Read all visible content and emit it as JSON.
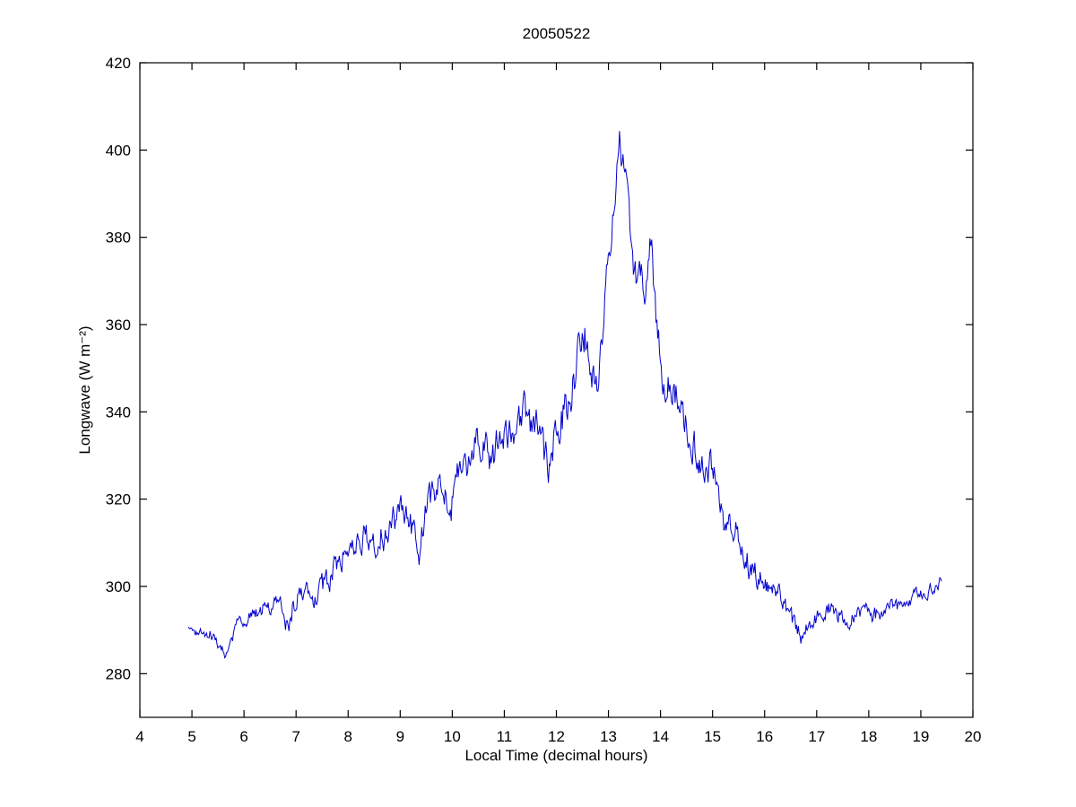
{
  "chart_data": {
    "type": "line",
    "title": "20050522",
    "xlabel": "Local Time (decimal hours)",
    "ylabel": "Longwave (W m⁻²)",
    "xlim": [
      4,
      20
    ],
    "ylim": [
      270,
      420
    ],
    "xticks": [
      4,
      5,
      6,
      7,
      8,
      9,
      10,
      11,
      12,
      13,
      14,
      15,
      16,
      17,
      18,
      19,
      20
    ],
    "yticks": [
      280,
      300,
      320,
      340,
      360,
      380,
      400,
      420
    ],
    "grid": false,
    "line_color": "#0000CC",
    "line_width": 1,
    "marker": "none",
    "series": [
      {
        "name": "longwave",
        "sample_interval_hours": 0.0167,
        "x": [
          4.93,
          5.05,
          5.15,
          5.25,
          5.35,
          5.45,
          5.55,
          5.65,
          5.75,
          5.85,
          5.95,
          6.05,
          6.15,
          6.25,
          6.35,
          6.45,
          6.55,
          6.65,
          6.75,
          6.85,
          6.95,
          7.05,
          7.15,
          7.25,
          7.35,
          7.45,
          7.55,
          7.65,
          7.75,
          7.85,
          7.95,
          8.05,
          8.15,
          8.25,
          8.35,
          8.45,
          8.55,
          8.65,
          8.75,
          8.85,
          8.95,
          9.05,
          9.15,
          9.25,
          9.35,
          9.45,
          9.55,
          9.65,
          9.75,
          9.85,
          9.95,
          10.05,
          10.15,
          10.25,
          10.35,
          10.45,
          10.55,
          10.65,
          10.75,
          10.85,
          10.95,
          11.05,
          11.15,
          11.25,
          11.35,
          11.45,
          11.55,
          11.65,
          11.75,
          11.85,
          11.95,
          12.05,
          12.15,
          12.25,
          12.35,
          12.45,
          12.55,
          12.65,
          12.75,
          12.85,
          12.95,
          13.05,
          13.15,
          13.22,
          13.3,
          13.4,
          13.5,
          13.6,
          13.7,
          13.8,
          13.9,
          14.0,
          14.1,
          14.2,
          14.3,
          14.4,
          14.5,
          14.6,
          14.7,
          14.8,
          14.9,
          15.0,
          15.1,
          15.2,
          15.3,
          15.4,
          15.5,
          15.6,
          15.7,
          15.8,
          15.9,
          16.0,
          16.1,
          16.2,
          16.3,
          16.4,
          16.5,
          16.6,
          16.7,
          16.8,
          16.9,
          17.0,
          17.1,
          17.2,
          17.3,
          17.4,
          17.5,
          17.6,
          17.7,
          17.8,
          17.9,
          18.0,
          18.1,
          18.2,
          18.3,
          18.4,
          18.5,
          18.6,
          18.7,
          18.8,
          18.9,
          19.0,
          19.1,
          19.2,
          19.3,
          19.4
        ],
        "y": [
          291,
          289.5,
          290,
          289,
          289.5,
          287.5,
          286.5,
          284.5,
          287,
          291,
          292.5,
          292.5,
          293.5,
          294,
          294.5,
          296,
          295.5,
          297,
          295,
          289.5,
          296,
          298.5,
          299.5,
          297,
          296.5,
          298,
          300.5,
          302,
          304.5,
          306.5,
          308,
          309.5,
          310.5,
          311.5,
          312,
          309,
          308,
          311.5,
          313,
          314,
          315.5,
          316.5,
          318,
          313,
          307.5,
          315,
          320,
          321.5,
          322.5,
          320,
          317.5,
          322,
          326,
          327.5,
          330,
          332,
          333.5,
          331,
          330,
          332,
          333.5,
          334,
          335.5,
          337,
          340,
          339,
          337.5,
          338.5,
          331,
          326,
          333,
          336,
          339.5,
          344,
          349,
          353,
          356,
          350,
          342,
          355,
          368,
          381,
          393,
          401,
          396,
          386,
          371,
          372,
          367,
          379,
          366,
          350,
          346.5,
          345.5,
          344,
          340.5,
          337.5,
          334,
          331.5,
          327,
          324.5,
          329,
          319,
          315.5,
          313.5,
          312.5,
          312,
          308,
          305,
          303.5,
          302,
          300.5,
          300,
          300.5,
          299.5,
          295,
          292.5,
          289.5,
          288.5,
          290,
          291,
          292.5,
          293.5,
          294.5,
          295.5,
          294,
          293,
          292,
          292.5,
          294,
          295,
          293.5,
          293,
          294,
          294.5,
          295.5,
          296.5,
          295,
          295.5,
          297,
          298,
          298.5,
          299,
          299.5,
          300,
          301
        ],
        "noise_x": [
          4.9,
          6,
          7,
          8,
          9,
          10,
          11,
          12,
          12.7,
          13.2,
          13.8,
          14.5,
          15,
          16,
          16.8,
          17.5,
          18.5,
          19.4
        ],
        "noise_amp": [
          0.8,
          1.0,
          1.8,
          2.2,
          2.8,
          3.0,
          3.2,
          3.3,
          3.8,
          3.0,
          3.5,
          2.8,
          2.8,
          2.0,
          1.5,
          1.4,
          1.3,
          1.0
        ]
      }
    ]
  }
}
